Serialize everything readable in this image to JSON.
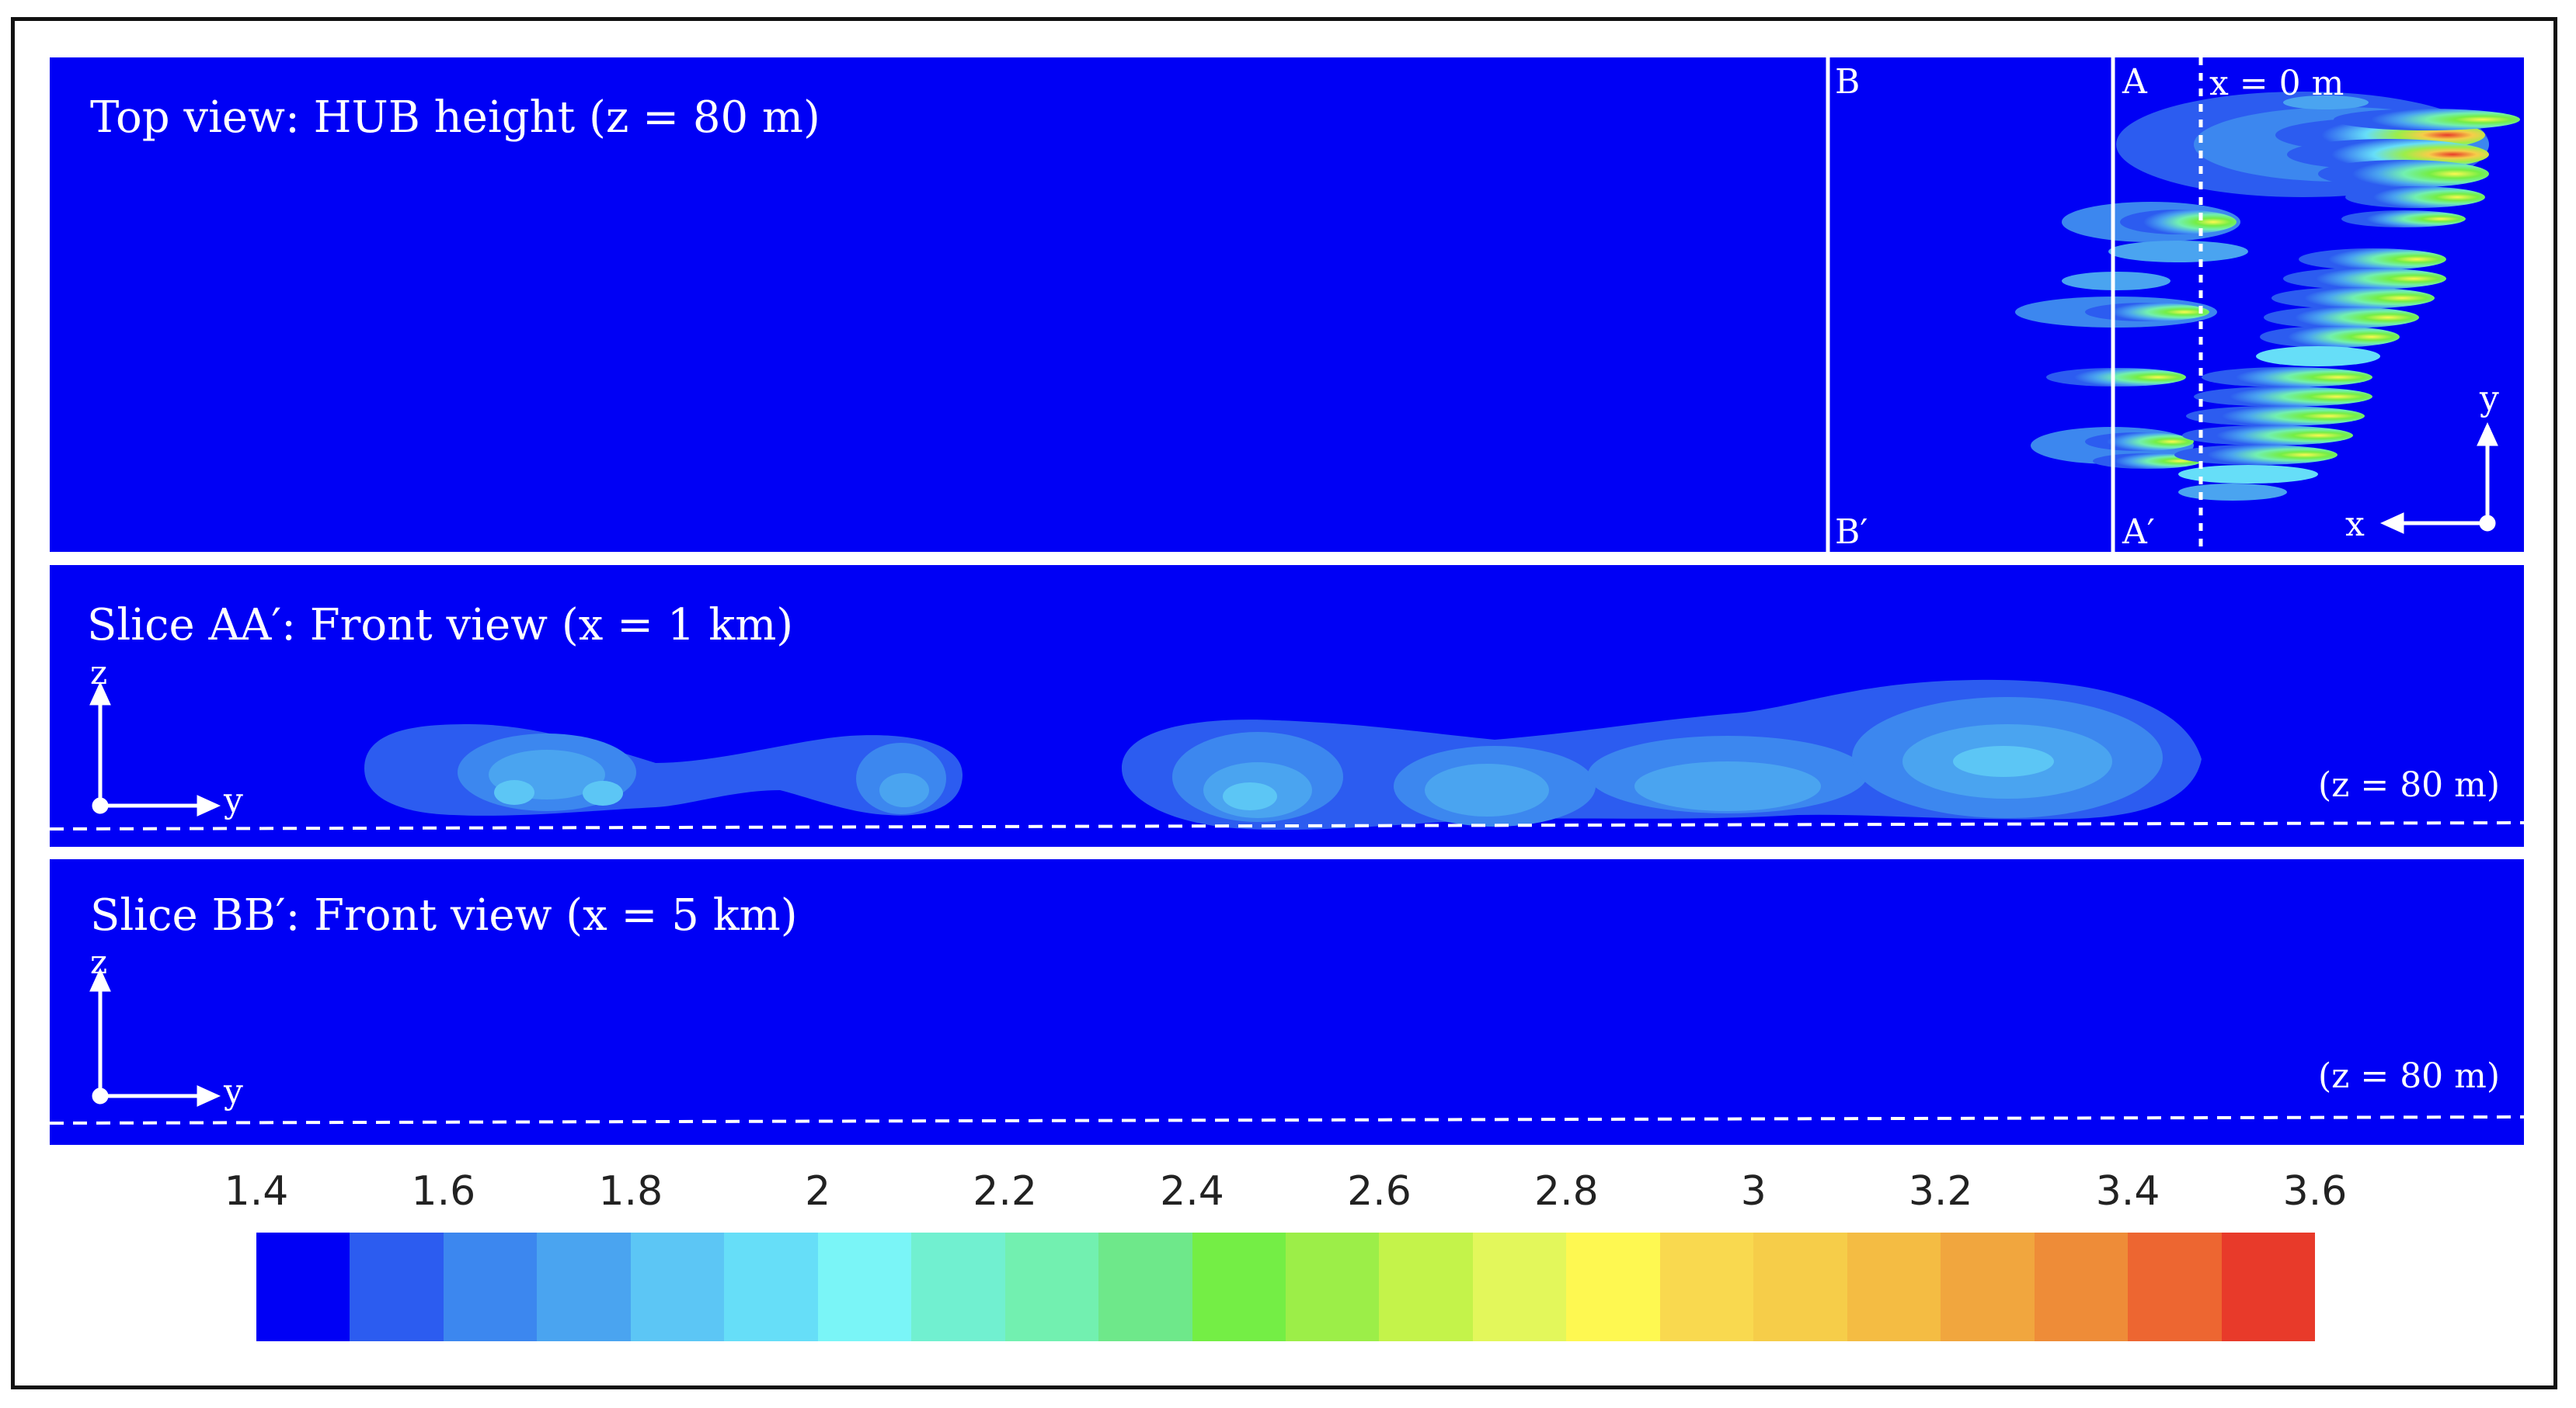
{
  "top_view": {
    "title": "Top view: HUB height (z = 80 m)",
    "line_b_top": "B",
    "line_b_bottom": "B′",
    "line_a_top": "A",
    "line_a_bottom": "A′",
    "x0_label": "x = 0 m",
    "axis_y": "y",
    "axis_x": "x"
  },
  "slice_aa": {
    "title": "Slice AA′: Front view (x = 1 km)",
    "axis_z": "z",
    "axis_y": "y",
    "hub_label": "(z = 80 m)"
  },
  "slice_bb": {
    "title": "Slice BB′: Front view (x = 5 km)",
    "axis_z": "z",
    "axis_y": "y",
    "hub_label": "(z = 80 m)"
  },
  "colorbar": {
    "tick_labels": [
      "1.4",
      "1.6",
      "1.8",
      "2",
      "2.2",
      "2.4",
      "2.6",
      "2.8",
      "3",
      "3.2",
      "3.4",
      "3.6"
    ],
    "colors": [
      "#0000f5",
      "#2c5cf0",
      "#3c87ef",
      "#4aa4f0",
      "#5cc6f5",
      "#66def8",
      "#7af5f7",
      "#71f0d0",
      "#72f0b0",
      "#6ee88a",
      "#74ee45",
      "#9cee48",
      "#c4f34a",
      "#e3f75b",
      "#fef851",
      "#f9d94f",
      "#f6cd49",
      "#f4bc43",
      "#f1a63e",
      "#ee8c38",
      "#ed6631",
      "#e83a2a"
    ],
    "background_color": "#0000f5"
  }
}
